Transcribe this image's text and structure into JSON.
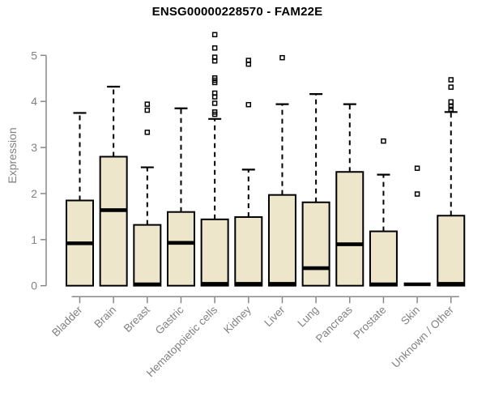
{
  "chart_data": {
    "type": "box",
    "title": "ENSG00000228570 - FAM22E",
    "ylabel": "Expression",
    "xlabel": "",
    "ylim": [
      0,
      5.5
    ],
    "yticks": [
      0,
      1,
      2,
      3,
      4,
      5
    ],
    "grid": false,
    "legend": "none",
    "categories": [
      "Bladder",
      "Brain",
      "Breast",
      "Gastric",
      "Hematopoietic cells",
      "Kidney",
      "Liver",
      "Lung",
      "Pancreas",
      "Prostate",
      "Skin",
      "Unknown / Other"
    ],
    "series": [
      {
        "category": "Bladder",
        "low": 0,
        "q1": 0,
        "median": 0.92,
        "q3": 1.85,
        "high": 3.75,
        "outliers": []
      },
      {
        "category": "Brain",
        "low": 0,
        "q1": 0,
        "median": 1.64,
        "q3": 2.8,
        "high": 4.32,
        "outliers": []
      },
      {
        "category": "Breast",
        "low": 0,
        "q1": 0,
        "median": 0.03,
        "q3": 1.32,
        "high": 2.57,
        "outliers": [
          3.33,
          3.81,
          3.94
        ]
      },
      {
        "category": "Gastric",
        "low": 0,
        "q1": 0,
        "median": 0.93,
        "q3": 1.6,
        "high": 3.85,
        "outliers": []
      },
      {
        "category": "Hematopoietic cells",
        "low": 0,
        "q1": 0,
        "median": 0.04,
        "q3": 1.44,
        "high": 3.62,
        "outliers": [
          3.72,
          3.77,
          3.96,
          4.1,
          4.18,
          4.41,
          4.46,
          4.51,
          4.88,
          4.96,
          5.16,
          5.45
        ]
      },
      {
        "category": "Kidney",
        "low": 0,
        "q1": 0,
        "median": 0.04,
        "q3": 1.49,
        "high": 2.52,
        "outliers": [
          3.93,
          4.81,
          4.89
        ]
      },
      {
        "category": "Liver",
        "low": 0,
        "q1": 0,
        "median": 0.04,
        "q3": 1.97,
        "high": 3.94,
        "outliers": [
          4.95
        ]
      },
      {
        "category": "Lung",
        "low": 0,
        "q1": 0,
        "median": 0.38,
        "q3": 1.81,
        "high": 4.16,
        "outliers": []
      },
      {
        "category": "Pancreas",
        "low": 0,
        "q1": 0,
        "median": 0.9,
        "q3": 2.47,
        "high": 3.94,
        "outliers": []
      },
      {
        "category": "Prostate",
        "low": 0,
        "q1": 0,
        "median": 0.03,
        "q3": 1.18,
        "high": 2.41,
        "outliers": [
          3.14
        ]
      },
      {
        "category": "Skin",
        "low": 0,
        "q1": 0,
        "median": 0.03,
        "q3": 0.03,
        "high": 0.03,
        "outliers": [
          1.99,
          2.55
        ]
      },
      {
        "category": "Unknown / Other",
        "low": 0,
        "q1": 0,
        "median": 0.04,
        "q3": 1.52,
        "high": 3.77,
        "outliers": [
          3.83,
          3.89,
          3.99,
          4.31,
          4.47
        ]
      }
    ],
    "colors": {
      "box_fill": "#EDE6CB",
      "box_border": "#000000",
      "median": "#000000",
      "whisker": "#000000",
      "outlier": "#000000",
      "axis": "#888888",
      "tick_label": "#828282",
      "axis_label": "#828282",
      "title": "#000000",
      "background": "#ffffff"
    }
  }
}
